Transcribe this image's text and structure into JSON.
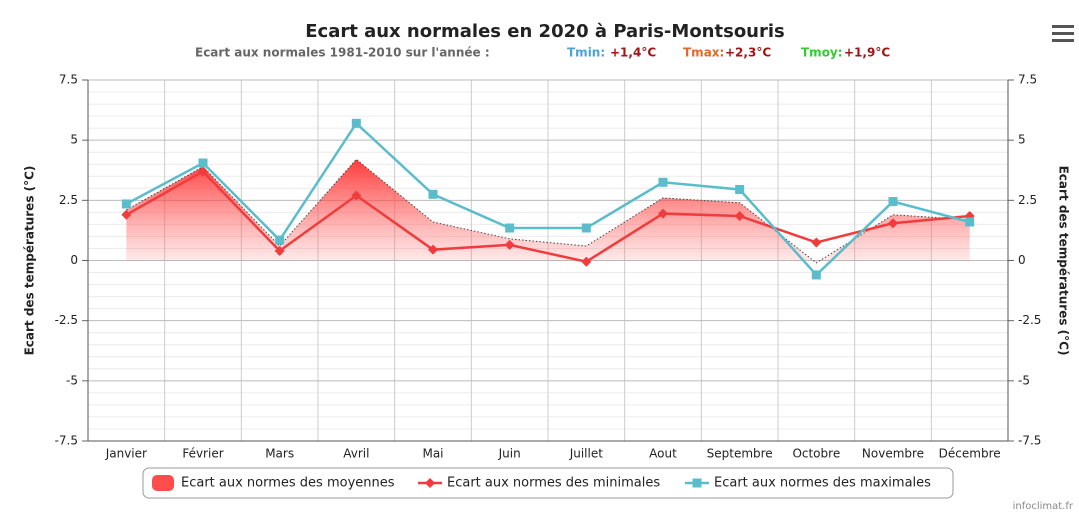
{
  "chart_data": {
    "type": "line",
    "title": "Ecart aux normales en 2020 à Paris-Montsouris",
    "subtitle": {
      "text": "Ecart aux normales 1981-2010 sur l'année :",
      "items": [
        {
          "label": "Tmin:",
          "value": "+1,4°C",
          "color": "#4aa3d6"
        },
        {
          "label": "Tmax:",
          "value": "+2,3°C",
          "color": "#e0692b"
        },
        {
          "label": "Tmoy:",
          "value": "+1,9°C",
          "color": "#2ecc2e"
        }
      ]
    },
    "categories": [
      "Janvier",
      "Février",
      "Mars",
      "Avril",
      "Mai",
      "Juin",
      "Juillet",
      "Aout",
      "Septembre",
      "Octobre",
      "Novembre",
      "Décembre"
    ],
    "series": [
      {
        "name": "Ecart aux normes des moyennes",
        "type": "area",
        "color": "#ff4d4d",
        "values": [
          2.1,
          3.9,
          0.6,
          4.2,
          1.6,
          0.9,
          0.6,
          2.6,
          2.4,
          -0.1,
          1.9,
          1.7
        ]
      },
      {
        "name": "Ecart aux normes des minimales",
        "type": "line",
        "color": "#f03c3c",
        "marker": "diamond",
        "values": [
          1.9,
          3.7,
          0.4,
          2.7,
          0.45,
          0.65,
          -0.05,
          1.95,
          1.85,
          0.75,
          1.55,
          1.85
        ]
      },
      {
        "name": "Ecart aux normes des maximales",
        "type": "line",
        "color": "#5bbdcc",
        "marker": "square",
        "values": [
          2.35,
          4.05,
          0.85,
          5.7,
          2.75,
          1.35,
          1.35,
          3.25,
          2.95,
          -0.6,
          2.45,
          1.6
        ]
      }
    ],
    "ylabel": "Ecart des températures (°C)",
    "y2label": "Ecart des températures (°C)",
    "ylim": [
      -7.5,
      7.5
    ],
    "yticks": [
      7.5,
      5,
      2.5,
      0,
      -2.5,
      -5,
      -7.5
    ],
    "y2lim": [
      -7.5,
      7.5
    ],
    "y2ticks": [
      7.5,
      5,
      2.5,
      0,
      -2.5,
      -5,
      -7.5
    ],
    "grid": true,
    "legend": "bottom",
    "credit": "infoclimat.fr"
  }
}
